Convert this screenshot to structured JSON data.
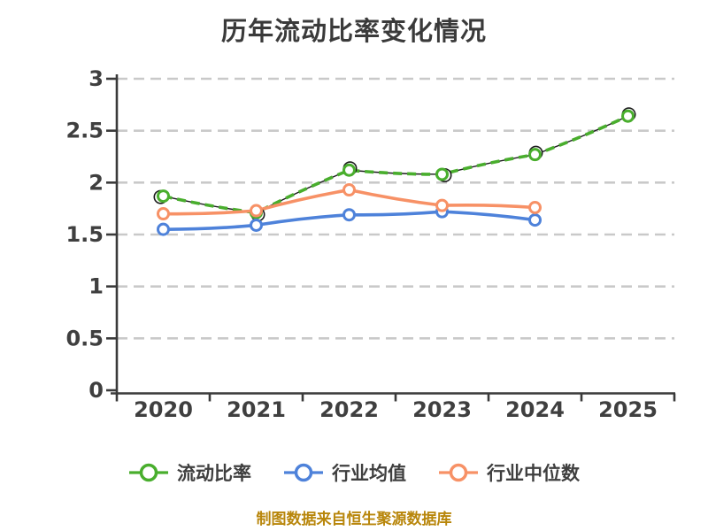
{
  "page": {
    "background_color": "#ffffff"
  },
  "chart_data": {
    "type": "line",
    "title": "历年流动比率变化情况",
    "footer": "制图数据来自恒生聚源数据库",
    "categories": [
      "2020",
      "2021",
      "2022",
      "2023",
      "2024",
      "2025"
    ],
    "y_ticks": [
      0,
      0.5,
      1,
      1.5,
      2,
      2.5,
      3
    ],
    "y_tick_labels": [
      "0",
      "0.5",
      "1",
      "1.5",
      "2",
      "2.5",
      "3"
    ],
    "ylim": [
      0,
      3
    ],
    "grid": "horizontal-dashed",
    "legend_position": "bottom",
    "xlabel": "",
    "ylabel": "",
    "series": [
      {
        "name": "流动比率",
        "color": "#49ae2d",
        "line_style": "dashed",
        "marker": "circle-white-fill",
        "values": [
          1.87,
          1.71,
          2.12,
          2.08,
          2.27,
          2.64
        ]
      },
      {
        "name": "行业均值",
        "color": "#4e82da",
        "line_style": "solid",
        "marker": "circle-white-fill",
        "values": [
          1.55,
          1.59,
          1.69,
          1.72,
          1.64,
          null
        ]
      },
      {
        "name": "行业中位数",
        "color": "#f79166",
        "line_style": "solid",
        "marker": "circle-white-fill",
        "values": [
          1.7,
          1.73,
          1.93,
          1.78,
          1.76,
          null
        ]
      }
    ],
    "colors": {
      "axis": "#3a3a3a",
      "grid_line": "#c9c9c9",
      "tick_text": "#3f3f3f",
      "title_text": "#3a3a3a",
      "footer_text": "#b8860b",
      "sketch_underlay": "#1c1c1c",
      "marker_fill": "#ffffff"
    }
  }
}
